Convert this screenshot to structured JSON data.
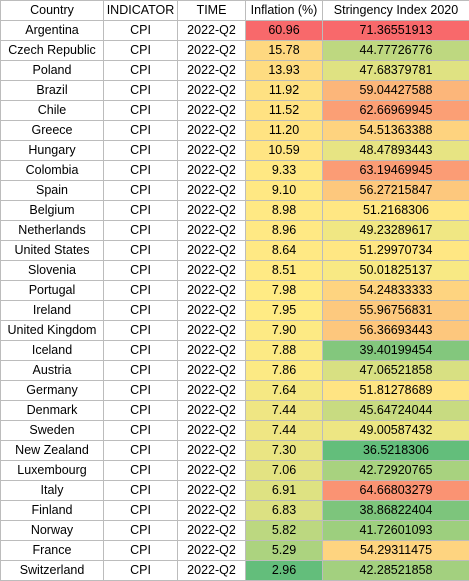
{
  "columns": [
    "Country",
    "INDICATOR",
    "TIME",
    "Inflation (%)",
    "Stringency Index 2020"
  ],
  "rows": [
    {
      "country": "Argentina",
      "indicator": "CPI",
      "time": "2022-Q2",
      "inflation": "60.96",
      "stringency": "71.36551913"
    },
    {
      "country": "Czech Republic",
      "indicator": "CPI",
      "time": "2022-Q2",
      "inflation": "15.78",
      "stringency": "44.77726776"
    },
    {
      "country": "Poland",
      "indicator": "CPI",
      "time": "2022-Q2",
      "inflation": "13.93",
      "stringency": "47.68379781"
    },
    {
      "country": "Brazil",
      "indicator": "CPI",
      "time": "2022-Q2",
      "inflation": "11.92",
      "stringency": "59.04427588"
    },
    {
      "country": "Chile",
      "indicator": "CPI",
      "time": "2022-Q2",
      "inflation": "11.52",
      "stringency": "62.66969945"
    },
    {
      "country": "Greece",
      "indicator": "CPI",
      "time": "2022-Q2",
      "inflation": "11.20",
      "stringency": "54.51363388"
    },
    {
      "country": "Hungary",
      "indicator": "CPI",
      "time": "2022-Q2",
      "inflation": "10.59",
      "stringency": "48.47893443"
    },
    {
      "country": "Colombia",
      "indicator": "CPI",
      "time": "2022-Q2",
      "inflation": "9.33",
      "stringency": "63.19469945"
    },
    {
      "country": "Spain",
      "indicator": "CPI",
      "time": "2022-Q2",
      "inflation": "9.10",
      "stringency": "56.27215847"
    },
    {
      "country": "Belgium",
      "indicator": "CPI",
      "time": "2022-Q2",
      "inflation": "8.98",
      "stringency": "51.2168306"
    },
    {
      "country": "Netherlands",
      "indicator": "CPI",
      "time": "2022-Q2",
      "inflation": "8.96",
      "stringency": "49.23289617"
    },
    {
      "country": "United States",
      "indicator": "CPI",
      "time": "2022-Q2",
      "inflation": "8.64",
      "stringency": "51.29970734"
    },
    {
      "country": "Slovenia",
      "indicator": "CPI",
      "time": "2022-Q2",
      "inflation": "8.51",
      "stringency": "50.01825137"
    },
    {
      "country": "Portugal",
      "indicator": "CPI",
      "time": "2022-Q2",
      "inflation": "7.98",
      "stringency": "54.24833333"
    },
    {
      "country": "Ireland",
      "indicator": "CPI",
      "time": "2022-Q2",
      "inflation": "7.95",
      "stringency": "55.96756831"
    },
    {
      "country": "United Kingdom",
      "indicator": "CPI",
      "time": "2022-Q2",
      "inflation": "7.90",
      "stringency": "56.36693443"
    },
    {
      "country": "Iceland",
      "indicator": "CPI",
      "time": "2022-Q2",
      "inflation": "7.88",
      "stringency": "39.40199454"
    },
    {
      "country": "Austria",
      "indicator": "CPI",
      "time": "2022-Q2",
      "inflation": "7.86",
      "stringency": "47.06521858"
    },
    {
      "country": "Germany",
      "indicator": "CPI",
      "time": "2022-Q2",
      "inflation": "7.64",
      "stringency": "51.81278689"
    },
    {
      "country": "Denmark",
      "indicator": "CPI",
      "time": "2022-Q2",
      "inflation": "7.44",
      "stringency": "45.64724044"
    },
    {
      "country": "Sweden",
      "indicator": "CPI",
      "time": "2022-Q2",
      "inflation": "7.44",
      "stringency": "49.00587432"
    },
    {
      "country": "New Zealand",
      "indicator": "CPI",
      "time": "2022-Q2",
      "inflation": "7.30",
      "stringency": "36.5218306"
    },
    {
      "country": "Luxembourg",
      "indicator": "CPI",
      "time": "2022-Q2",
      "inflation": "7.06",
      "stringency": "42.72920765"
    },
    {
      "country": "Italy",
      "indicator": "CPI",
      "time": "2022-Q2",
      "inflation": "6.91",
      "stringency": "64.66803279"
    },
    {
      "country": "Finland",
      "indicator": "CPI",
      "time": "2022-Q2",
      "inflation": "6.83",
      "stringency": "38.86822404"
    },
    {
      "country": "Norway",
      "indicator": "CPI",
      "time": "2022-Q2",
      "inflation": "5.82",
      "stringency": "41.72601093"
    },
    {
      "country": "France",
      "indicator": "CPI",
      "time": "2022-Q2",
      "inflation": "5.29",
      "stringency": "54.29311475"
    },
    {
      "country": "Switzerland",
      "indicator": "CPI",
      "time": "2022-Q2",
      "inflation": "2.96",
      "stringency": "42.28521858"
    }
  ],
  "color_scale": {
    "low": "#63be7b",
    "mid": "#ffeb84",
    "high": "#f8696b"
  }
}
